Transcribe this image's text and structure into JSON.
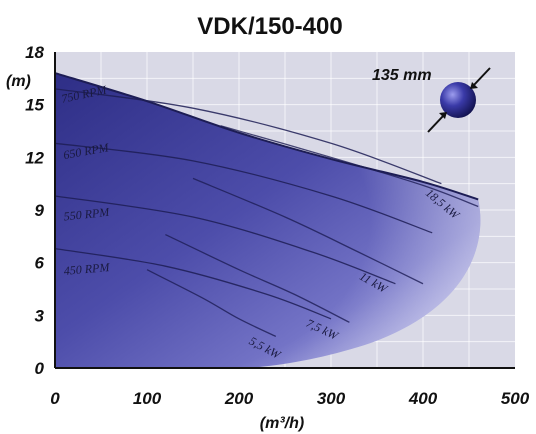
{
  "chart_data": {
    "type": "area",
    "title": "VDK/150-400",
    "xlabel": "(m³/h)",
    "ylabel": "(m)",
    "xlim": [
      0,
      500
    ],
    "ylim": [
      0,
      18
    ],
    "xticks": [
      "0",
      "100",
      "200",
      "300",
      "400",
      "500"
    ],
    "yticks": [
      "0",
      "3",
      "6",
      "9",
      "12",
      "15",
      "18"
    ],
    "grid": true,
    "envelope": {
      "x": [
        0,
        100,
        200,
        300,
        400,
        460
      ],
      "y": [
        16.8,
        15.2,
        13.4,
        11.9,
        10.6,
        9.6
      ]
    },
    "speed_curves": [
      {
        "label": "750 RPM",
        "x": [
          0,
          150,
          300,
          420
        ],
        "y": [
          15.9,
          14.8,
          12.8,
          10.5
        ]
      },
      {
        "label": "650 RPM",
        "x": [
          0,
          150,
          300,
          410
        ],
        "y": [
          12.8,
          11.8,
          9.8,
          7.7
        ]
      },
      {
        "label": "550 RPM",
        "x": [
          0,
          150,
          280,
          370
        ],
        "y": [
          9.8,
          8.6,
          6.6,
          4.8
        ]
      },
      {
        "label": "450 RPM",
        "x": [
          0,
          120,
          230,
          300
        ],
        "y": [
          6.8,
          5.8,
          4.2,
          2.8
        ]
      }
    ],
    "power_curves": [
      {
        "label": "18,5 kW",
        "x": [
          180,
          300,
          400,
          460
        ],
        "y": [
          13.8,
          12.0,
          10.4,
          9.2
        ]
      },
      {
        "label": "11 kW",
        "x": [
          150,
          250,
          330,
          400
        ],
        "y": [
          10.8,
          8.6,
          6.6,
          4.8
        ]
      },
      {
        "label": "7,5 kW",
        "x": [
          120,
          200,
          260,
          320
        ],
        "y": [
          7.6,
          5.6,
          4.2,
          2.6
        ]
      },
      {
        "label": "5,5 kW",
        "x": [
          100,
          160,
          200,
          240
        ],
        "y": [
          5.6,
          4.0,
          2.8,
          1.8
        ]
      }
    ],
    "annotations": [
      {
        "text": "750 RPM",
        "x": 8,
        "y": 15.1,
        "angle": -12
      },
      {
        "text": "650 RPM",
        "x": 10,
        "y": 11.9,
        "angle": -10
      },
      {
        "text": "550 RPM",
        "x": 10,
        "y": 8.4,
        "angle": -6
      },
      {
        "text": "450 RPM",
        "x": 10,
        "y": 5.3,
        "angle": -5
      },
      {
        "text": "18,5 kW",
        "x": 402,
        "y": 9.9,
        "angle": 40
      },
      {
        "text": "11 kW",
        "x": 330,
        "y": 5.1,
        "angle": 30
      },
      {
        "text": "7,5 kW",
        "x": 272,
        "y": 2.4,
        "angle": 25
      },
      {
        "text": "5,5 kW",
        "x": 210,
        "y": 1.4,
        "angle": 28
      }
    ],
    "solids_size": {
      "text": "135 mm"
    },
    "colors": {
      "fill_dark": "#2f2f8f",
      "fill_mid": "#5a5ab8",
      "fill_light": "#b7b7e4",
      "background": "#d9d9e6",
      "axis": "#111111"
    }
  }
}
